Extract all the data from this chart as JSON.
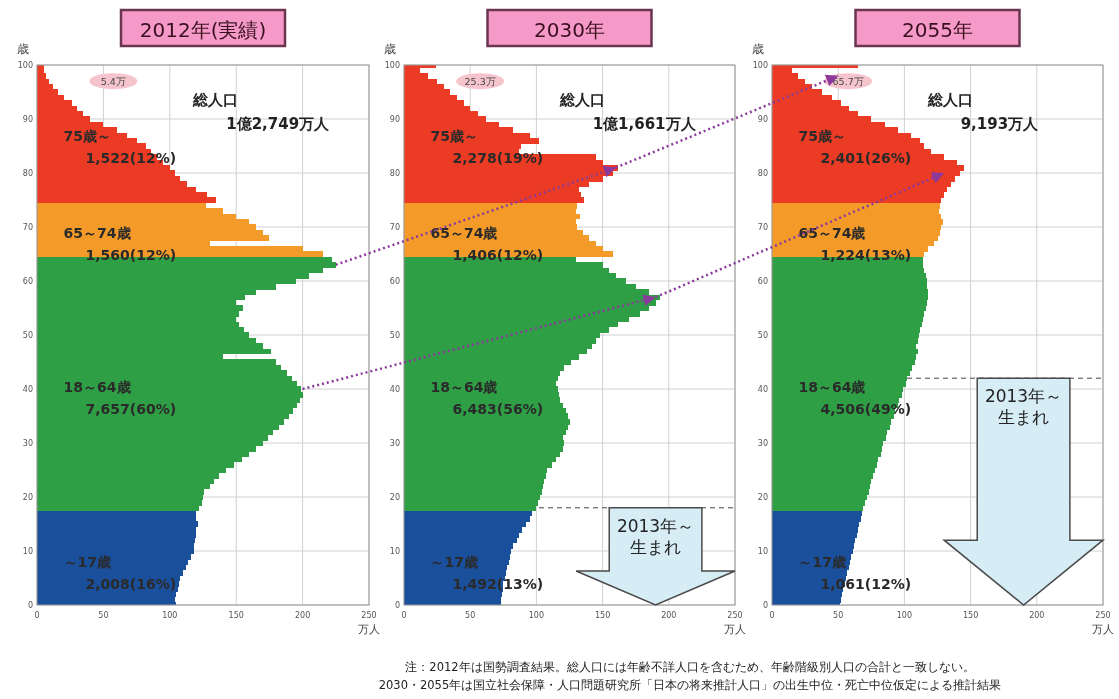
{
  "chart_data": [
    {
      "type": "bar",
      "orientation": "horizontal",
      "title": "2012年(実績)",
      "xlabel": "万人",
      "ylabel": "歳",
      "xlim": [
        0,
        250
      ],
      "xticks": [
        0,
        50,
        100,
        150,
        200,
        250
      ],
      "ylim": [
        0,
        100
      ],
      "yticks": [
        0,
        10,
        20,
        30,
        40,
        50,
        60,
        70,
        80,
        90,
        100
      ],
      "grid": true,
      "series": [
        {
          "name": "～17歳",
          "color": "#1a4f9c",
          "x": [
            0,
            1,
            2,
            3,
            4,
            5,
            6,
            7,
            8,
            9,
            10,
            11,
            12,
            13,
            14,
            15,
            16,
            17
          ],
          "values": [
            105,
            104,
            105,
            106,
            107,
            108,
            110,
            112,
            114,
            116,
            118,
            118,
            119,
            120,
            120,
            121,
            120,
            120
          ]
        },
        {
          "name": "18～64歳",
          "color": "#2e9f45",
          "x": [
            18,
            19,
            20,
            21,
            22,
            23,
            24,
            25,
            26,
            27,
            28,
            29,
            30,
            31,
            32,
            33,
            34,
            35,
            36,
            37,
            38,
            39,
            40,
            41,
            42,
            43,
            44,
            45,
            46,
            47,
            48,
            49,
            50,
            51,
            52,
            53,
            54,
            55,
            56,
            57,
            58,
            59,
            60,
            61,
            62,
            63,
            64
          ],
          "values": [
            122,
            124,
            125,
            126,
            130,
            133,
            137,
            142,
            148,
            154,
            160,
            165,
            170,
            174,
            178,
            182,
            186,
            190,
            193,
            196,
            198,
            200,
            199,
            196,
            192,
            188,
            184,
            180,
            140,
            176,
            170,
            165,
            160,
            156,
            152,
            150,
            152,
            155,
            150,
            157,
            165,
            180,
            195,
            205,
            215,
            225,
            222
          ]
        },
        {
          "name": "65～74歳",
          "color": "#f39a28",
          "x": [
            65,
            66,
            67,
            68,
            69,
            70,
            71,
            72,
            73,
            74
          ],
          "values": [
            215,
            200,
            130,
            175,
            170,
            165,
            160,
            150,
            140,
            127
          ]
        },
        {
          "name": "75歳～",
          "color": "#ec3b24",
          "x": [
            75,
            76,
            77,
            78,
            79,
            80,
            81,
            82,
            83,
            84,
            85,
            86,
            87,
            88,
            89,
            90,
            91,
            92,
            93,
            94,
            95,
            96,
            97,
            98,
            99,
            100
          ],
          "values": [
            135,
            128,
            120,
            113,
            108,
            104,
            100,
            95,
            90,
            86,
            82,
            75,
            68,
            60,
            50,
            40,
            35,
            30,
            26,
            20,
            16,
            12,
            9,
            7,
            5,
            5
          ]
        }
      ],
      "annotations": [
        "5.4万",
        "総人口\n1億2,749万人",
        "2,008(16%)",
        "7,657(60%)",
        "1,560(12%)",
        "1,522(12%)"
      ]
    },
    {
      "type": "bar",
      "orientation": "horizontal",
      "title": "2030年",
      "xlabel": "万人",
      "ylabel": "歳",
      "xlim": [
        0,
        250
      ],
      "xticks": [
        0,
        50,
        100,
        150,
        200,
        250
      ],
      "ylim": [
        0,
        100
      ],
      "yticks": [
        0,
        10,
        20,
        30,
        40,
        50,
        60,
        70,
        80,
        90,
        100
      ],
      "grid": true,
      "series": [
        {
          "name": "～17歳",
          "color": "#1a4f9c",
          "x": [
            0,
            1,
            2,
            3,
            4,
            5,
            6,
            7,
            8,
            9,
            10,
            11,
            12,
            13,
            14,
            15,
            16,
            17
          ],
          "values": [
            73,
            73,
            74,
            75,
            75,
            76,
            77,
            78,
            79,
            80,
            81,
            82,
            85,
            87,
            89,
            92,
            95,
            97
          ]
        },
        {
          "name": "18～64歳",
          "color": "#2e9f45",
          "x": [
            18,
            19,
            20,
            21,
            22,
            23,
            24,
            25,
            26,
            27,
            28,
            29,
            30,
            31,
            32,
            33,
            34,
            35,
            36,
            37,
            38,
            39,
            40,
            41,
            42,
            43,
            44,
            45,
            46,
            47,
            48,
            49,
            50,
            51,
            52,
            53,
            54,
            55,
            56,
            57,
            58,
            59,
            60,
            61,
            62,
            63,
            64
          ],
          "values": [
            100,
            101,
            103,
            104,
            105,
            106,
            107,
            108,
            112,
            115,
            118,
            120,
            121,
            120,
            122,
            124,
            125,
            124,
            122,
            120,
            118,
            117,
            116,
            115,
            116,
            118,
            121,
            126,
            132,
            138,
            142,
            145,
            148,
            155,
            162,
            170,
            178,
            185,
            190,
            193,
            185,
            175,
            168,
            160,
            155,
            150,
            130
          ]
        },
        {
          "name": "65～74歳",
          "color": "#f39a28",
          "x": [
            65,
            66,
            67,
            68,
            69,
            70,
            71,
            72,
            73,
            74
          ],
          "values": [
            158,
            150,
            145,
            140,
            135,
            131,
            130,
            133,
            130,
            131
          ]
        },
        {
          "name": "75歳～",
          "color": "#ec3b24",
          "x": [
            75,
            76,
            77,
            78,
            79,
            80,
            81,
            82,
            83,
            84,
            85,
            86,
            87,
            88,
            89,
            90,
            91,
            92,
            93,
            94,
            95,
            96,
            97,
            98,
            99,
            100
          ],
          "values": [
            136,
            134,
            132,
            140,
            150,
            158,
            162,
            150,
            145,
            87,
            88,
            102,
            95,
            82,
            72,
            62,
            56,
            50,
            45,
            40,
            35,
            30,
            25,
            18,
            12,
            24
          ]
        }
      ],
      "ref_lines": [
        {
          "axis": "y",
          "value": 18,
          "label": "2013年～生まれ",
          "line_style": "dashed"
        }
      ],
      "annotations": [
        "25.3万",
        "総人口\n1億1,661万人",
        "1,492(13%)",
        "6,483(56%)",
        "1,406(12%)",
        "2,278(19%)",
        "注：2012年は国勢調査結果。総人口には年齢不詳人口を含むため、年齢階級別人口の合計と一致しない。",
        "2030・2055年は国立社会保障・人口問題研究所「日本の将来推計人口」の出生中位・死亡中位仮定による推計結果"
      ]
    },
    {
      "type": "bar",
      "orientation": "horizontal",
      "title": "2055年",
      "xlabel": "万人",
      "ylabel": "歳",
      "xlim": [
        0,
        250
      ],
      "xticks": [
        0,
        50,
        100,
        150,
        200,
        250
      ],
      "ylim": [
        0,
        100
      ],
      "yticks": [
        0,
        10,
        20,
        30,
        40,
        50,
        60,
        70,
        80,
        90,
        100
      ],
      "grid": true,
      "series": [
        {
          "name": "～17歳",
          "color": "#1a4f9c",
          "x": [
            0,
            1,
            2,
            3,
            4,
            5,
            6,
            7,
            8,
            9,
            10,
            11,
            12,
            13,
            14,
            15,
            16,
            17
          ],
          "values": [
            51,
            52,
            53,
            54,
            55,
            56,
            57,
            58,
            59,
            60,
            61,
            62,
            63,
            64,
            65,
            66,
            67,
            68
          ]
        },
        {
          "name": "18～64歳",
          "color": "#2e9f45",
          "x": [
            18,
            19,
            20,
            21,
            22,
            23,
            24,
            25,
            26,
            27,
            28,
            29,
            30,
            31,
            32,
            33,
            34,
            35,
            36,
            37,
            38,
            39,
            40,
            41,
            42,
            43,
            44,
            45,
            46,
            47,
            48,
            49,
            50,
            51,
            52,
            53,
            54,
            55,
            56,
            57,
            58,
            59,
            60,
            61,
            62,
            63,
            64
          ],
          "values": [
            69,
            70,
            72,
            73,
            74,
            75,
            76,
            78,
            79,
            80,
            82,
            83,
            84,
            86,
            87,
            89,
            90,
            92,
            93,
            95,
            96,
            98,
            99,
            101,
            102,
            104,
            106,
            108,
            109,
            110,
            109,
            110,
            111,
            112,
            113,
            114,
            115,
            116,
            117,
            118,
            118,
            117,
            117,
            116,
            115,
            114,
            114
          ]
        },
        {
          "name": "65～74歳",
          "color": "#f39a28",
          "x": [
            65,
            66,
            67,
            68,
            69,
            70,
            71,
            72,
            73,
            74
          ],
          "values": [
            115,
            118,
            122,
            125,
            127,
            128,
            129,
            128,
            126,
            127
          ]
        },
        {
          "name": "75歳～",
          "color": "#ec3b24",
          "x": [
            75,
            76,
            77,
            78,
            79,
            80,
            81,
            82,
            83,
            84,
            85,
            86,
            87,
            88,
            89,
            90,
            91,
            92,
            93,
            94,
            95,
            96,
            97,
            98,
            99,
            100
          ],
          "values": [
            128,
            130,
            132,
            135,
            138,
            142,
            145,
            140,
            130,
            120,
            115,
            112,
            105,
            95,
            85,
            75,
            65,
            58,
            52,
            45,
            38,
            30,
            25,
            20,
            15,
            65
          ]
        }
      ],
      "ref_lines": [
        {
          "axis": "y",
          "value": 42,
          "label": "2013年～生まれ",
          "line_style": "dashed"
        }
      ],
      "annotations": [
        "65.7万",
        "総人口\n9,193万人",
        "1,061(12%)",
        "4,506(49%)",
        "1,224(13%)",
        "2,401(26%)"
      ]
    }
  ]
}
